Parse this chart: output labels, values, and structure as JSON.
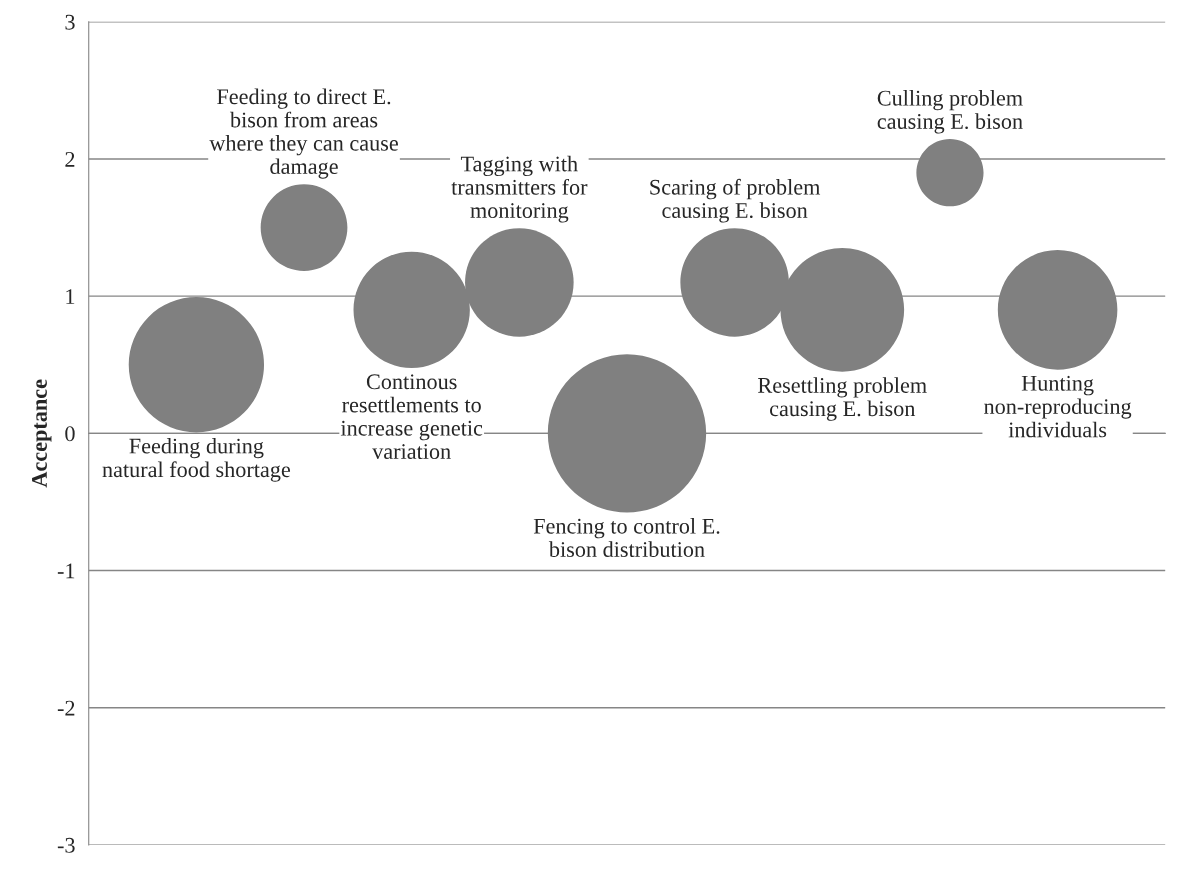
{
  "chart_data": {
    "type": "bubble",
    "ylabel": "Acceptance",
    "categories": [
      null,
      null,
      null,
      null,
      null,
      null,
      null,
      null,
      null
    ],
    "series": [
      {
        "name": "Feeding during natural food shortage",
        "color": "#808080",
        "values": [
          0.5,
          null,
          null,
          null,
          null,
          null,
          null,
          null,
          null
        ],
        "sizes": [
          0.73,
          null,
          null,
          null,
          null,
          null,
          null,
          null,
          null
        ]
      },
      {
        "name": "Feeding to direct E. bison from areas where they can cause damage",
        "color": "#808080",
        "values": [
          null,
          1.5,
          null,
          null,
          null,
          null,
          null,
          null,
          null
        ],
        "sizes": [
          null,
          0.3,
          null,
          null,
          null,
          null,
          null,
          null,
          null
        ]
      },
      {
        "name": "Continous resettlements to increase genetic variation",
        "color": "#808080",
        "values": [
          null,
          null,
          0.9,
          null,
          null,
          null,
          null,
          null,
          null
        ],
        "sizes": [
          null,
          null,
          0.54,
          null,
          null,
          null,
          null,
          null,
          null
        ]
      },
      {
        "name": "Tagging with transmitters for monitoring",
        "color": "#808080",
        "values": [
          null,
          null,
          null,
          1.1,
          null,
          null,
          null,
          null,
          null
        ],
        "sizes": [
          null,
          null,
          null,
          0.47,
          null,
          null,
          null,
          null,
          null
        ]
      },
      {
        "name": "Fencing to control E. bison distribution",
        "color": "#808080",
        "values": [
          null,
          null,
          null,
          null,
          0,
          null,
          null,
          null,
          null
        ],
        "sizes": [
          null,
          null,
          null,
          null,
          1,
          null,
          null,
          null,
          null
        ]
      },
      {
        "name": "Scaring of problem causing E. bison",
        "color": "#808080",
        "values": [
          null,
          null,
          null,
          null,
          null,
          1.1,
          null,
          null,
          null
        ],
        "sizes": [
          null,
          null,
          null,
          null,
          null,
          0.47,
          null,
          null,
          null
        ]
      },
      {
        "name": "Resettling problem causing E. bison",
        "color": "#808080",
        "values": [
          null,
          null,
          null,
          null,
          null,
          null,
          0.9,
          null,
          null
        ],
        "sizes": [
          null,
          null,
          null,
          null,
          null,
          null,
          0.61,
          null,
          null
        ]
      },
      {
        "name": "Culling problem causing E. bison",
        "color": "#808080",
        "values": [
          null,
          null,
          null,
          null,
          null,
          null,
          null,
          1.9,
          null
        ],
        "sizes": [
          null,
          null,
          null,
          null,
          null,
          null,
          null,
          0.18,
          null
        ]
      },
      {
        "name": "Hunting non-reproducing individuals",
        "color": "#808080",
        "values": [
          null,
          null,
          null,
          null,
          null,
          null,
          null,
          null,
          0.9
        ],
        "sizes": [
          null,
          null,
          null,
          null,
          null,
          null,
          null,
          null,
          0.57
        ]
      }
    ],
    "ylim": [
      -3,
      3
    ],
    "yticks": [
      {
        "value": -3,
        "label": "-3"
      },
      {
        "value": -2,
        "label": "-2"
      },
      {
        "value": -1,
        "label": "-1"
      },
      0,
      1,
      2,
      3
    ],
    "grid": "y",
    "legend": false
  }
}
